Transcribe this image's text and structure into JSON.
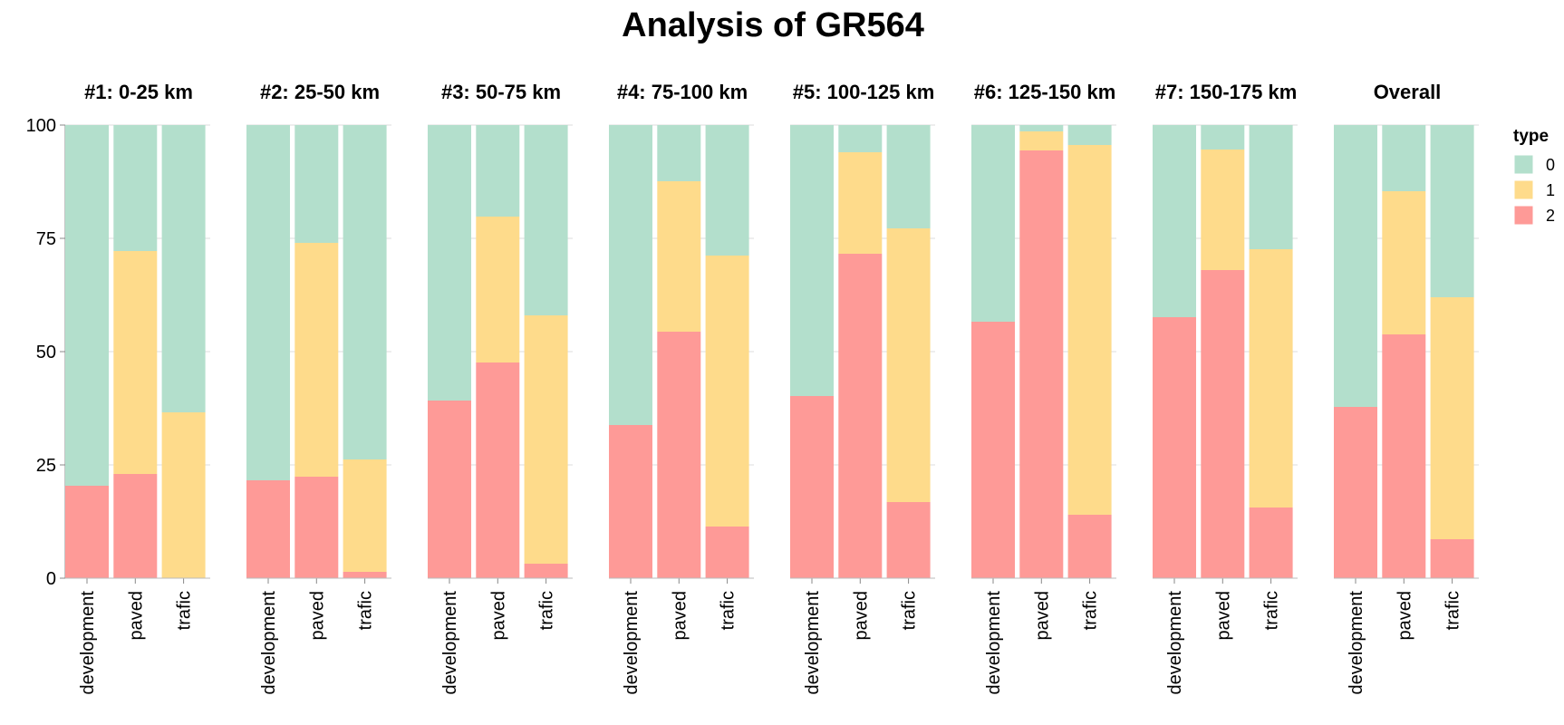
{
  "chart_data": {
    "type": "bar",
    "stacked": true,
    "normalized": true,
    "title": "Analysis of GR564",
    "facets": [
      "#1: 0-25 km",
      "#2: 25-50 km",
      "#3: 50-75 km",
      "#4: 75-100 km",
      "#5: 100-125 km",
      "#6: 125-150 km",
      "#7: 150-175 km",
      "Overall"
    ],
    "categories": [
      "development",
      "paved",
      "traffic"
    ],
    "category_labels": [
      "development",
      "paved",
      "trafic"
    ],
    "legend": {
      "title": "type",
      "position": "right",
      "entries": [
        {
          "name": "0",
          "color": "#b3dfcc"
        },
        {
          "name": "1",
          "color": "#fedb8b"
        },
        {
          "name": "2",
          "color": "#fe9a97"
        }
      ]
    },
    "ylim": [
      0,
      100
    ],
    "yticks": [
      0,
      25,
      50,
      75,
      100
    ],
    "grid": true,
    "series_by_facet": [
      {
        "facet": "#1: 0-25 km",
        "development": [
          79.6,
          0,
          20.4
        ],
        "paved": [
          27.8,
          49.2,
          23.0
        ],
        "traffic": [
          63.4,
          36.6,
          0
        ]
      },
      {
        "facet": "#2: 25-50 km",
        "development": [
          78.4,
          0,
          21.6
        ],
        "paved": [
          26.0,
          51.6,
          22.4
        ],
        "traffic": [
          73.8,
          24.8,
          1.4
        ]
      },
      {
        "facet": "#3: 50-75 km",
        "development": [
          60.8,
          0,
          39.2
        ],
        "paved": [
          20.2,
          32.2,
          47.6
        ],
        "traffic": [
          42.0,
          54.8,
          3.2
        ]
      },
      {
        "facet": "#4: 75-100 km",
        "development": [
          66.2,
          0,
          33.8
        ],
        "paved": [
          12.4,
          33.2,
          54.4
        ],
        "traffic": [
          28.8,
          59.8,
          11.4
        ]
      },
      {
        "facet": "#5: 100-125 km",
        "development": [
          59.8,
          0,
          40.2
        ],
        "paved": [
          6.0,
          22.4,
          71.6
        ],
        "traffic": [
          22.8,
          60.4,
          16.8
        ]
      },
      {
        "facet": "#6: 125-150 km",
        "development": [
          43.4,
          0,
          56.6
        ],
        "paved": [
          1.4,
          4.2,
          94.4
        ],
        "traffic": [
          4.4,
          81.6,
          14.0
        ]
      },
      {
        "facet": "#7: 150-175 km",
        "development": [
          42.4,
          0,
          57.6
        ],
        "paved": [
          5.4,
          26.6,
          68.0
        ],
        "traffic": [
          27.4,
          57.0,
          15.6
        ]
      },
      {
        "facet": "Overall",
        "development": [
          62.2,
          0,
          37.8
        ],
        "paved": [
          14.6,
          31.6,
          53.8
        ],
        "traffic": [
          38.0,
          53.4,
          8.6
        ]
      }
    ]
  }
}
